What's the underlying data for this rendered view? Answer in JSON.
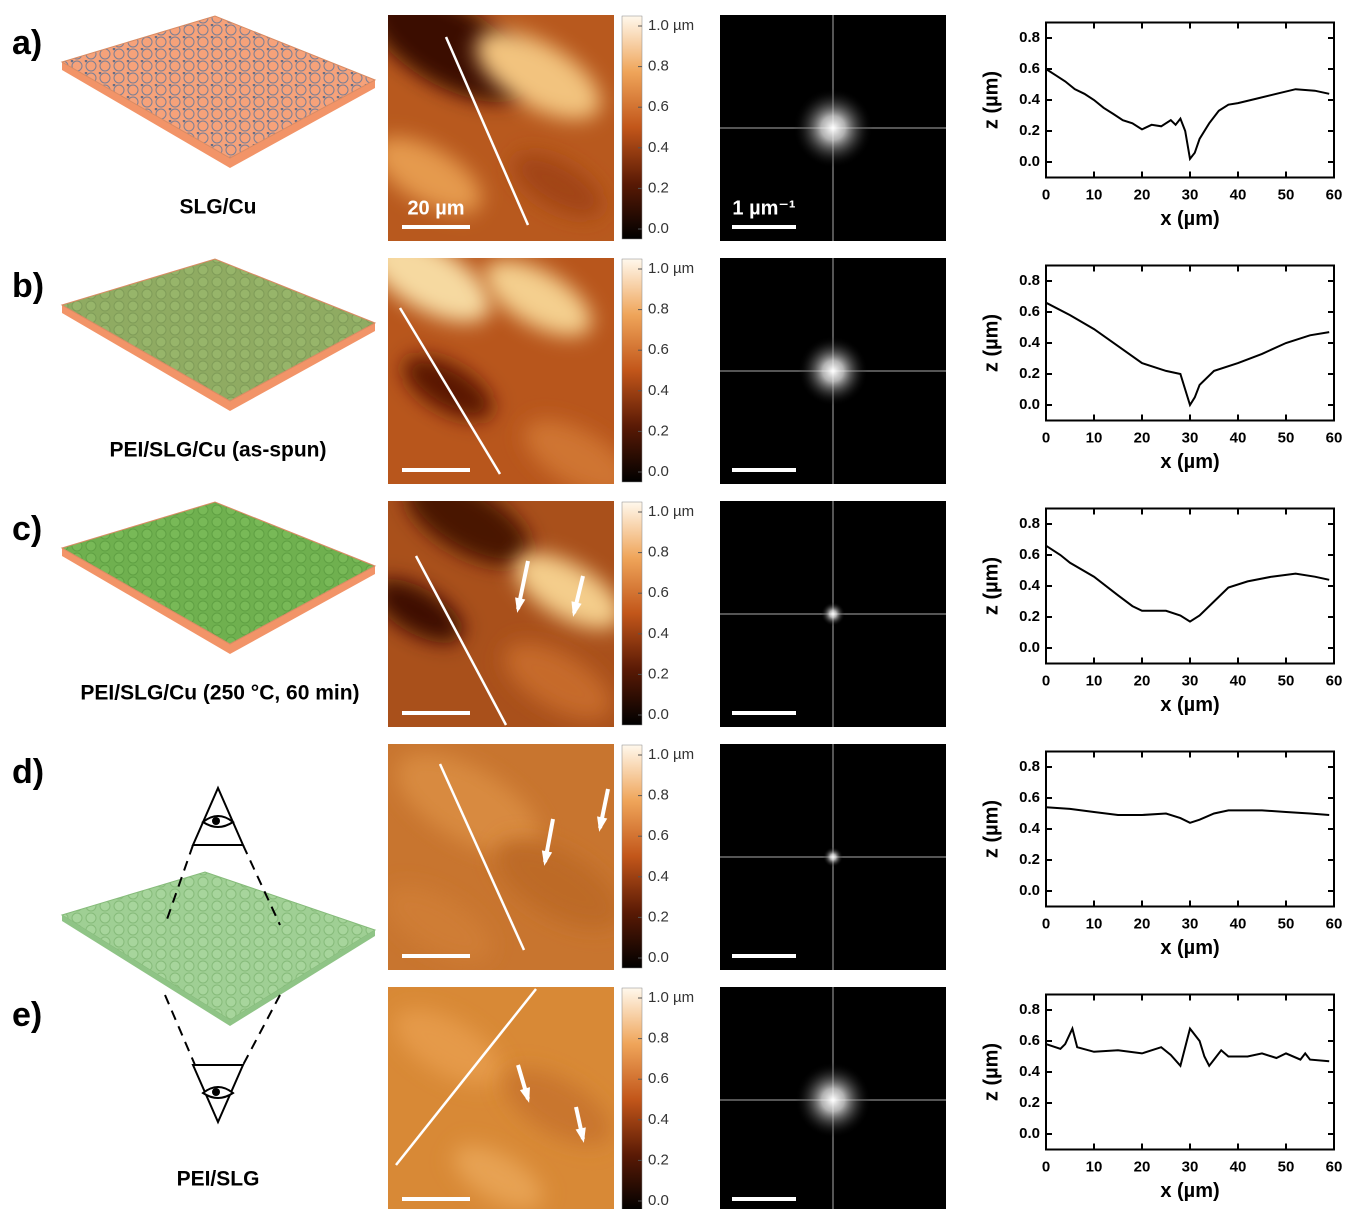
{
  "panels": [
    {
      "label": "a)",
      "caption": "SLG/Cu"
    },
    {
      "label": "b)",
      "caption": "PEI/SLG/Cu (as-spun)"
    },
    {
      "label": "c)",
      "caption": "PEI/SLG/Cu (250 °C, 60 min)"
    },
    {
      "label": "d)"
    },
    {
      "label": "e)",
      "caption": "PEI/SLG"
    }
  ],
  "scale_bars": {
    "afm": "20 µm",
    "fft": "1 µm⁻¹"
  },
  "colorbar": {
    "lim": [
      0,
      1
    ],
    "ticks": [
      {
        "value": 0,
        "label": "0.0"
      },
      0.2,
      0.4,
      0.6,
      0.8,
      {
        "value": 1,
        "label": "1.0 µm"
      }
    ]
  },
  "chart_data": [
    {
      "type": "line",
      "xlabel": "x (µm)",
      "ylabel": "z (µm)",
      "color": "#000000",
      "x": [
        0,
        2,
        4,
        6,
        8,
        10,
        12,
        14,
        16,
        18,
        20,
        22,
        24,
        26,
        27,
        28,
        29,
        30,
        31,
        32,
        34,
        36,
        38,
        40,
        44,
        48,
        52,
        56,
        59
      ],
      "values": [
        0.6,
        0.56,
        0.52,
        0.47,
        0.44,
        0.4,
        0.35,
        0.31,
        0.27,
        0.25,
        0.21,
        0.24,
        0.23,
        0.27,
        0.24,
        0.28,
        0.2,
        0.02,
        0.06,
        0.15,
        0.25,
        0.33,
        0.37,
        0.38,
        0.41,
        0.44,
        0.47,
        0.46,
        0.44
      ],
      "xlim": [
        0,
        60
      ],
      "ylim": [
        -0.1,
        0.9
      ],
      "xticks": [
        0,
        10,
        20,
        30,
        40,
        50,
        60
      ],
      "yticks": [
        {
          "value": 0,
          "label": "0.0"
        },
        0.2,
        0.4,
        0.6,
        0.8
      ]
    },
    {
      "type": "line",
      "xlabel": "x (µm)",
      "ylabel": "z (µm)",
      "color": "#000000",
      "x": [
        0,
        5,
        10,
        15,
        20,
        25,
        28,
        29,
        30,
        31,
        32,
        35,
        40,
        45,
        50,
        55,
        59
      ],
      "values": [
        0.66,
        0.58,
        0.49,
        0.38,
        0.27,
        0.22,
        0.2,
        0.1,
        0.0,
        0.05,
        0.13,
        0.22,
        0.27,
        0.33,
        0.4,
        0.45,
        0.47
      ],
      "xlim": [
        0,
        60
      ],
      "ylim": [
        -0.1,
        0.9
      ],
      "xticks": [
        0,
        10,
        20,
        30,
        40,
        50,
        60
      ],
      "yticks": [
        {
          "value": 0,
          "label": "0.0"
        },
        0.2,
        0.4,
        0.6,
        0.8
      ]
    },
    {
      "type": "line",
      "xlabel": "x (µm)",
      "ylabel": "z (µm)",
      "color": "#000000",
      "x": [
        0,
        3,
        5,
        10,
        15,
        18,
        20,
        25,
        28,
        30,
        32,
        35,
        38,
        42,
        47,
        52,
        56,
        59
      ],
      "values": [
        0.66,
        0.6,
        0.55,
        0.46,
        0.34,
        0.27,
        0.24,
        0.24,
        0.21,
        0.17,
        0.21,
        0.3,
        0.39,
        0.43,
        0.46,
        0.48,
        0.46,
        0.44
      ],
      "xlim": [
        0,
        60
      ],
      "ylim": [
        -0.1,
        0.9
      ],
      "xticks": [
        0,
        10,
        20,
        30,
        40,
        50,
        60
      ],
      "yticks": [
        {
          "value": 0,
          "label": "0.0"
        },
        0.2,
        0.4,
        0.6,
        0.8
      ]
    },
    {
      "type": "line",
      "xlabel": "x (µm)",
      "ylabel": "z (µm)",
      "color": "#000000",
      "x": [
        0,
        5,
        10,
        15,
        20,
        25,
        28,
        30,
        32,
        35,
        38,
        45,
        50,
        55,
        59
      ],
      "values": [
        0.54,
        0.53,
        0.51,
        0.49,
        0.49,
        0.5,
        0.47,
        0.44,
        0.46,
        0.5,
        0.52,
        0.52,
        0.51,
        0.5,
        0.49
      ],
      "xlim": [
        0,
        60
      ],
      "ylim": [
        -0.1,
        0.9
      ],
      "xticks": [
        0,
        10,
        20,
        30,
        40,
        50,
        60
      ],
      "yticks": [
        {
          "value": 0,
          "label": "0.0"
        },
        0.2,
        0.4,
        0.6,
        0.8
      ]
    },
    {
      "type": "line",
      "xlabel": "x (µm)",
      "ylabel": "z (µm)",
      "color": "#000000",
      "x": [
        0,
        3,
        4,
        5.5,
        6.5,
        10,
        15,
        20,
        24,
        26,
        28,
        29.5,
        30,
        32,
        33,
        34,
        35,
        36.5,
        38,
        42,
        45,
        48,
        50,
        53,
        54,
        55,
        59
      ],
      "values": [
        0.58,
        0.55,
        0.58,
        0.68,
        0.56,
        0.53,
        0.54,
        0.52,
        0.56,
        0.51,
        0.44,
        0.62,
        0.68,
        0.6,
        0.5,
        0.44,
        0.48,
        0.54,
        0.5,
        0.5,
        0.52,
        0.49,
        0.52,
        0.48,
        0.52,
        0.48,
        0.47
      ],
      "xlim": [
        0,
        60
      ],
      "ylim": [
        -0.1,
        0.9
      ],
      "xticks": [
        0,
        10,
        20,
        30,
        40,
        50,
        60
      ],
      "yticks": [
        {
          "value": 0,
          "label": "0.0"
        },
        0.2,
        0.4,
        0.6,
        0.8
      ]
    }
  ]
}
